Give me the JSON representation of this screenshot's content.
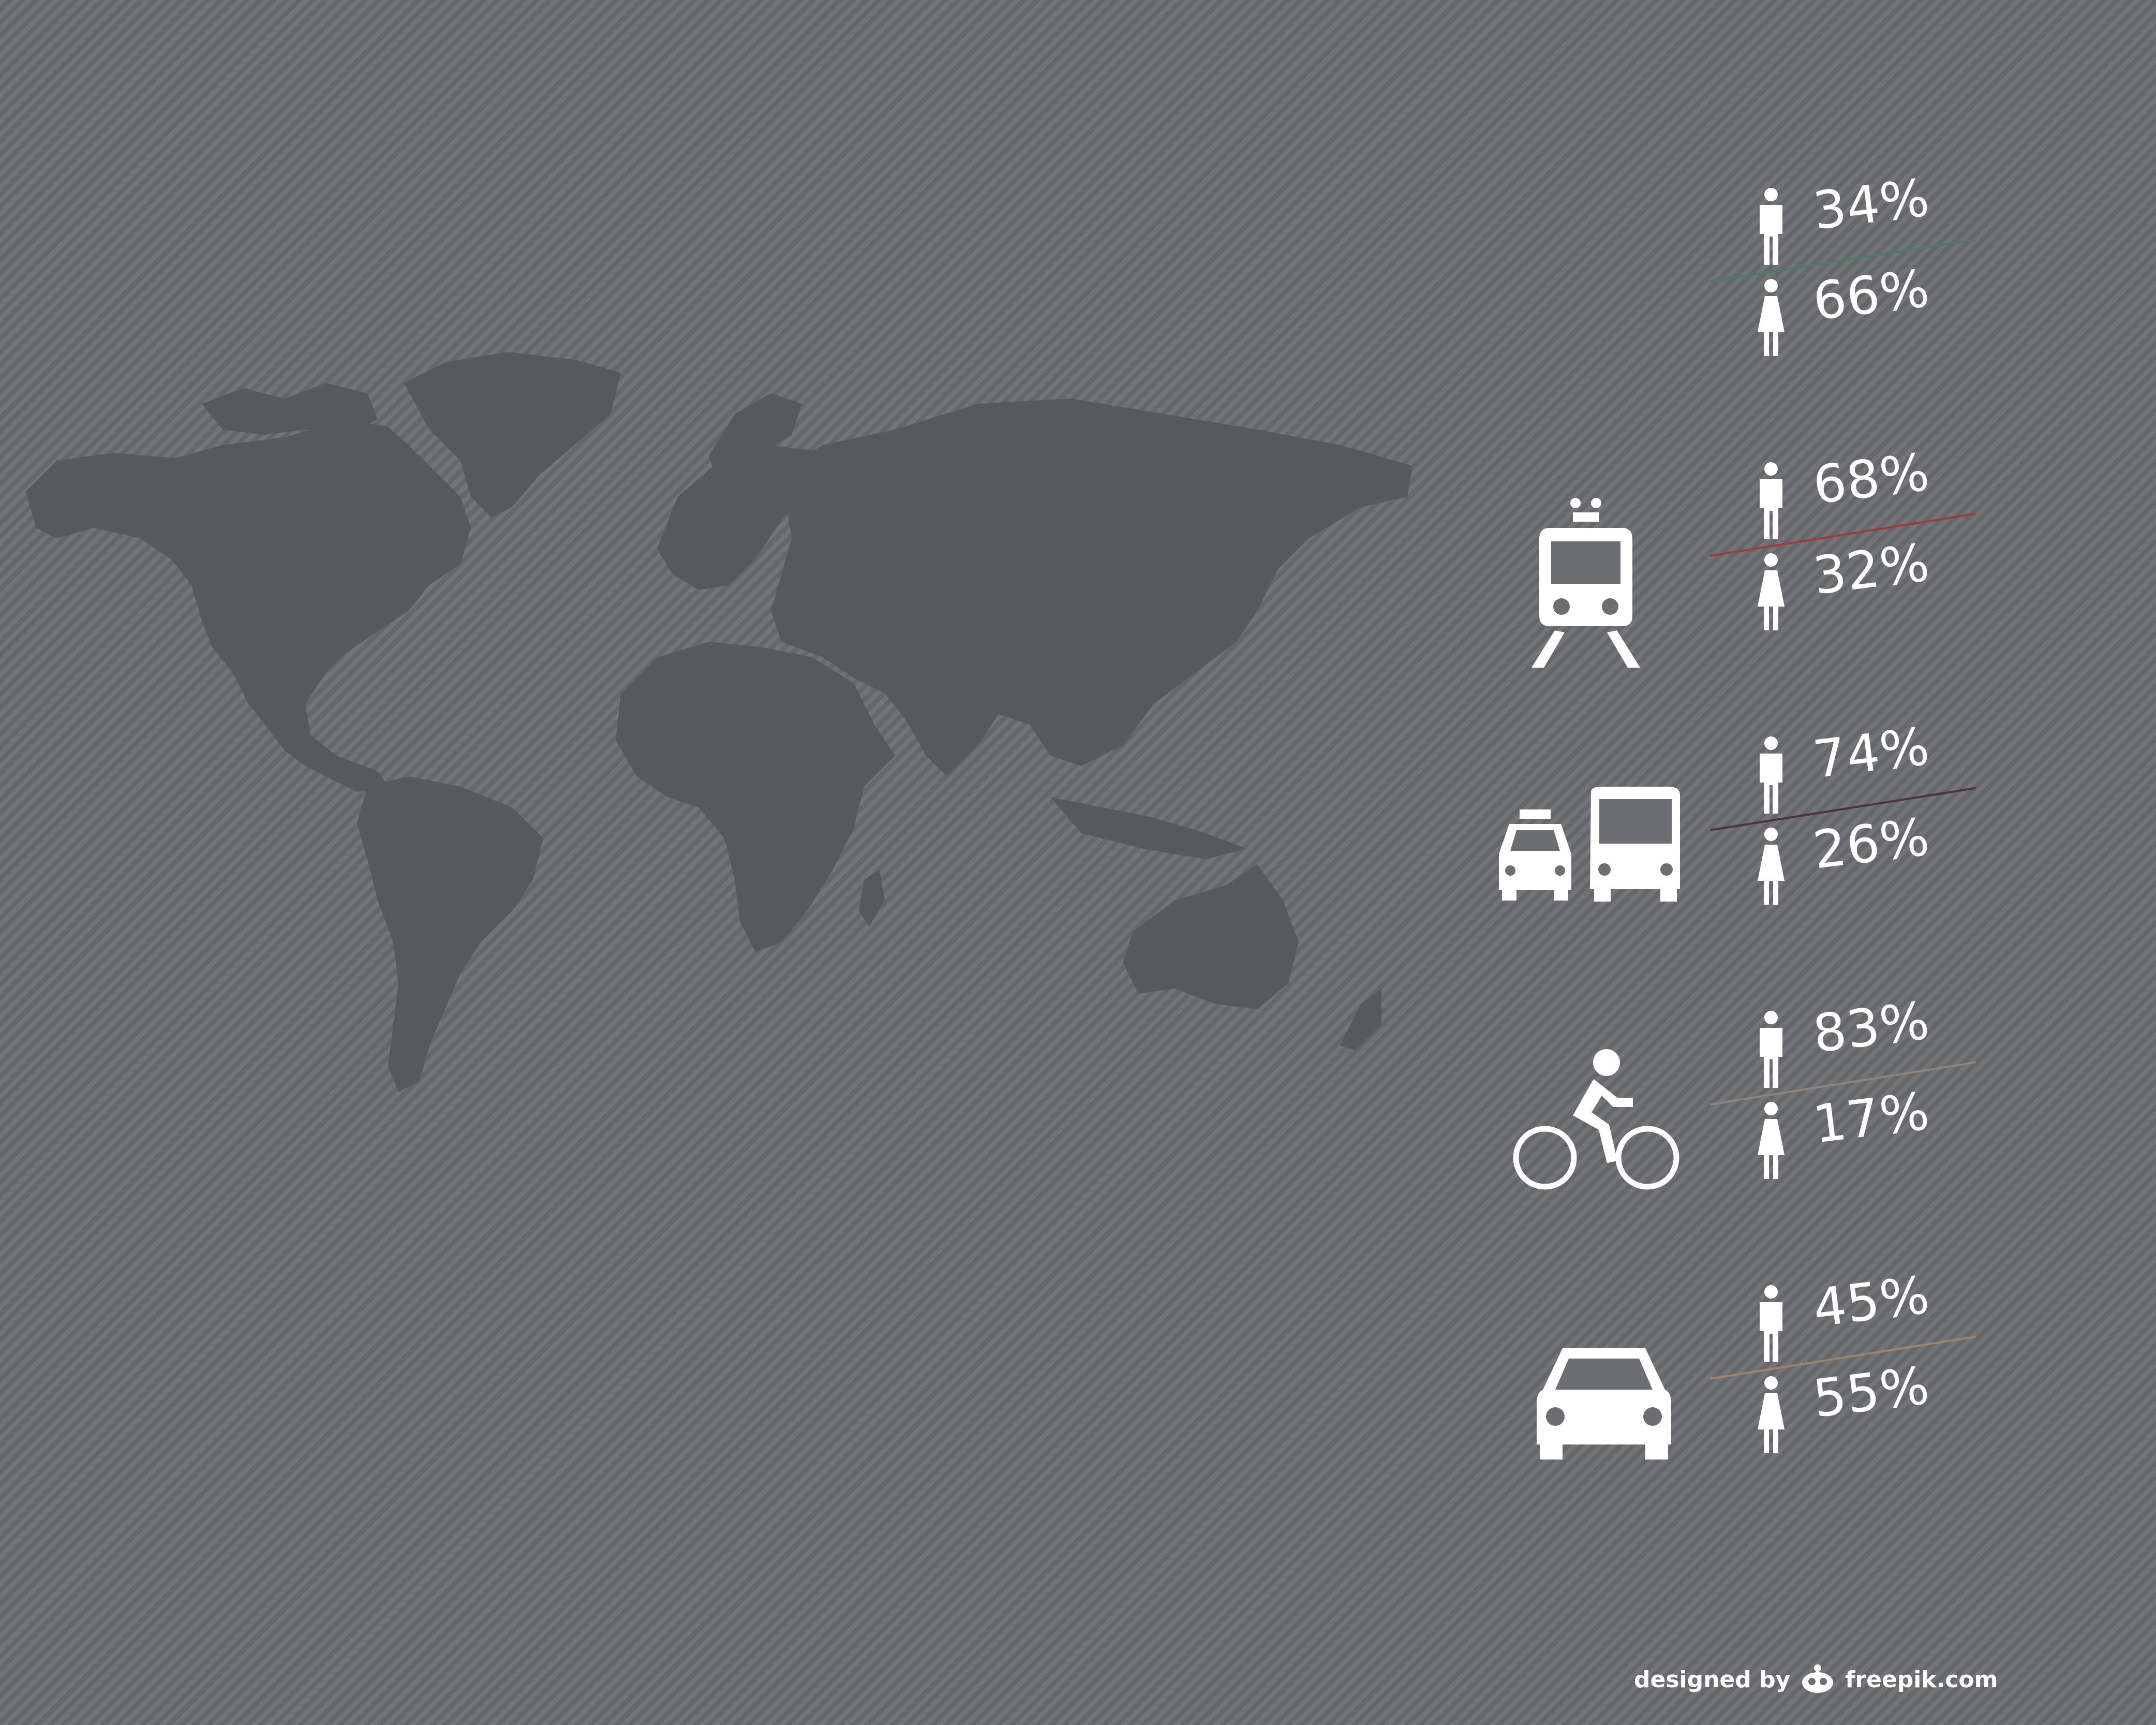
{
  "background_color": "#6d6e71",
  "map_color": "#58595b",
  "icon_color": "#ffffff",
  "rows": [
    {
      "transport": "",
      "transport_icon": "none",
      "male_pct": "34%",
      "female_pct": "66%",
      "line_color": "#4f7a67"
    },
    {
      "transport": "train",
      "transport_icon": "train-icon",
      "male_pct": "68%",
      "female_pct": "32%",
      "line_color": "#9b3b3b"
    },
    {
      "transport": "taxi-bus",
      "transport_icon": "taxi-bus-icon",
      "male_pct": "74%",
      "female_pct": "26%",
      "line_color": "#4f2f45"
    },
    {
      "transport": "bicycle",
      "transport_icon": "bicycle-icon",
      "male_pct": "83%",
      "female_pct": "17%",
      "line_color": "#8a8678"
    },
    {
      "transport": "car",
      "transport_icon": "car-icon",
      "male_pct": "45%",
      "female_pct": "55%",
      "line_color": "#a08465"
    }
  ],
  "credit": {
    "prefix": "designed by",
    "brand": "freepik.com"
  }
}
